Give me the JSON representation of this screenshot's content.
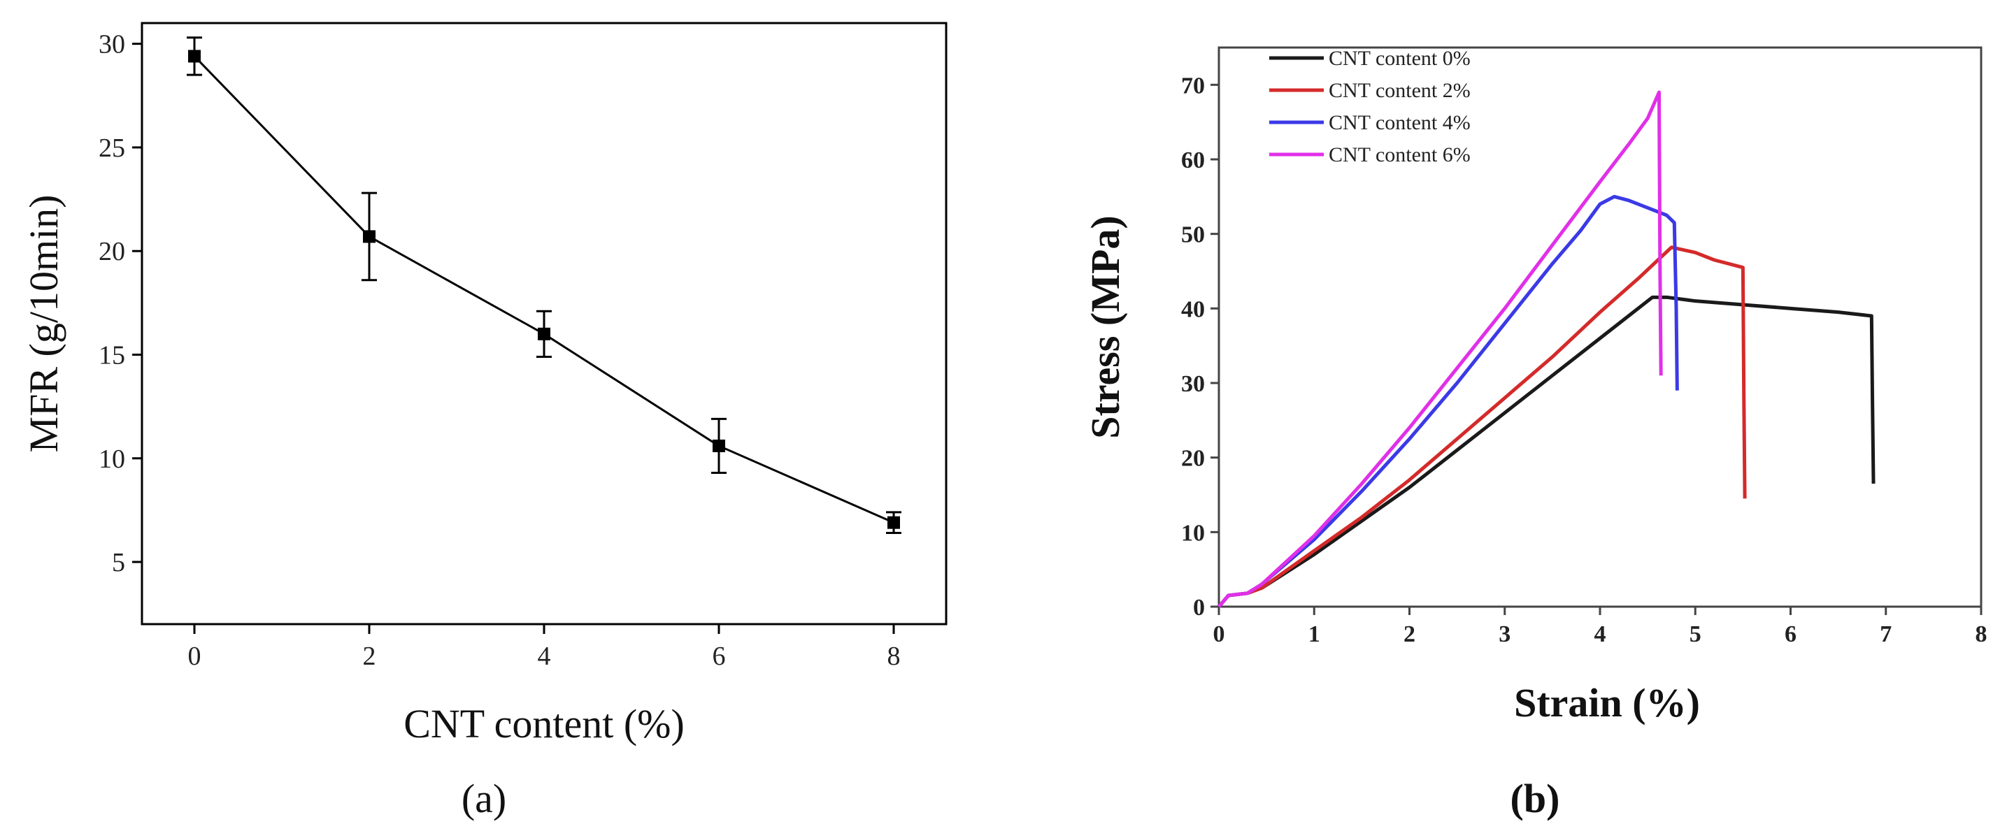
{
  "chart_data": [
    {
      "type": "line",
      "panel_label": "(a)",
      "xlabel": "CNT content (%)",
      "ylabel": "MFR (g/10min)",
      "xlim": [
        -0.6,
        8.6
      ],
      "ylim": [
        2,
        31
      ],
      "xticks": [
        0,
        2,
        4,
        6,
        8
      ],
      "yticks": [
        5,
        10,
        15,
        20,
        25,
        30
      ],
      "grid": false,
      "series": [
        {
          "name": "MFR",
          "color": "#000000",
          "marker": "square",
          "x": [
            0,
            2,
            4,
            6,
            8
          ],
          "y": [
            29.4,
            20.7,
            16.0,
            10.6,
            6.9
          ],
          "err": [
            0.9,
            2.1,
            1.1,
            1.3,
            0.5
          ]
        }
      ]
    },
    {
      "type": "line",
      "panel_label": "(b)",
      "xlabel": "Strain (%)",
      "ylabel": "Stress (MPa)",
      "xlim": [
        0,
        8
      ],
      "ylim": [
        0,
        75
      ],
      "xticks": [
        0,
        1,
        2,
        3,
        4,
        5,
        6,
        7,
        8
      ],
      "yticks": [
        0,
        10,
        20,
        30,
        40,
        50,
        60,
        70
      ],
      "grid": false,
      "legend_position": "top-left",
      "series": [
        {
          "name": "CNT content 0%",
          "color": "#1a1a1a",
          "x": [
            0,
            0.1,
            0.3,
            0.45,
            1,
            1.5,
            2,
            2.5,
            3,
            3.5,
            4,
            4.3,
            4.55,
            4.7,
            5,
            5.5,
            6,
            6.5,
            6.85,
            6.86,
            6.87
          ],
          "y": [
            0,
            1.5,
            1.8,
            2.5,
            7,
            11.5,
            16,
            21,
            26,
            31,
            36,
            39,
            41.5,
            41.5,
            41,
            40.5,
            40,
            39.5,
            39,
            27,
            16.5
          ]
        },
        {
          "name": "CNT content 2%",
          "color": "#d42a2a",
          "x": [
            0,
            0.1,
            0.3,
            0.45,
            1,
            1.5,
            2,
            2.5,
            3,
            3.5,
            4,
            4.4,
            4.75,
            5,
            5.2,
            5.5,
            5.51,
            5.52
          ],
          "y": [
            0,
            1.5,
            1.8,
            2.5,
            7.5,
            12,
            17,
            22.5,
            28,
            33.5,
            39.5,
            44,
            48.2,
            47.5,
            46.5,
            45.5,
            28,
            14.5
          ]
        },
        {
          "name": "CNT content 4%",
          "color": "#3a3ae6",
          "x": [
            0,
            0.1,
            0.3,
            0.45,
            1,
            1.5,
            2,
            2.5,
            3,
            3.5,
            3.8,
            4.0,
            4.15,
            4.3,
            4.5,
            4.7,
            4.78,
            4.8,
            4.81
          ],
          "y": [
            0,
            1.5,
            1.8,
            3,
            9,
            15.5,
            22.5,
            30,
            38,
            46,
            50.5,
            54,
            55,
            54.5,
            53.5,
            52.5,
            51.5,
            40,
            29
          ]
        },
        {
          "name": "CNT content 6%",
          "color": "#e030e8",
          "x": [
            0,
            0.1,
            0.3,
            0.45,
            1,
            1.5,
            2,
            2.5,
            3,
            3.5,
            4,
            4.3,
            4.5,
            4.62,
            4.63,
            4.64
          ],
          "y": [
            0,
            1.5,
            1.8,
            3,
            9.5,
            16.5,
            24,
            32,
            40,
            48.5,
            57,
            62,
            65.5,
            69,
            45,
            31
          ]
        }
      ]
    }
  ]
}
